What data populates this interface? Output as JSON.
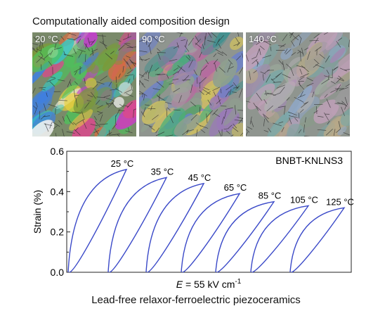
{
  "header": {
    "title": "Computationally aided composition design"
  },
  "panels": [
    {
      "label": "20 °C",
      "tone": "vivid"
    },
    {
      "label": "90 °C",
      "tone": "mixed"
    },
    {
      "label": "140 °C",
      "tone": "faded"
    }
  ],
  "chart_data": {
    "type": "line",
    "title": "",
    "annotation": "BNBT-KNLNS3",
    "xlabel_italic": "E",
    "xlabel_rest": " = 55 kV cm",
    "xlabel_sup": "-1",
    "ylabel": "Strain (%)",
    "ylim": [
      0.0,
      0.6
    ],
    "yticks": [
      "0.0",
      "0.2",
      "0.4",
      "0.6"
    ],
    "grid": false,
    "line_color": "#3a49c8",
    "curves": [
      {
        "label": "25 °C",
        "peak": 0.51
      },
      {
        "label": "35 °C",
        "peak": 0.47
      },
      {
        "label": "45 °C",
        "peak": 0.44
      },
      {
        "label": "65 °C",
        "peak": 0.39
      },
      {
        "label": "85 °C",
        "peak": 0.35
      },
      {
        "label": "105 °C",
        "peak": 0.33
      },
      {
        "label": "125 °C",
        "peak": 0.32
      }
    ]
  },
  "footer": {
    "caption": "Lead-free relaxor-ferroelectric piezoceramics"
  }
}
